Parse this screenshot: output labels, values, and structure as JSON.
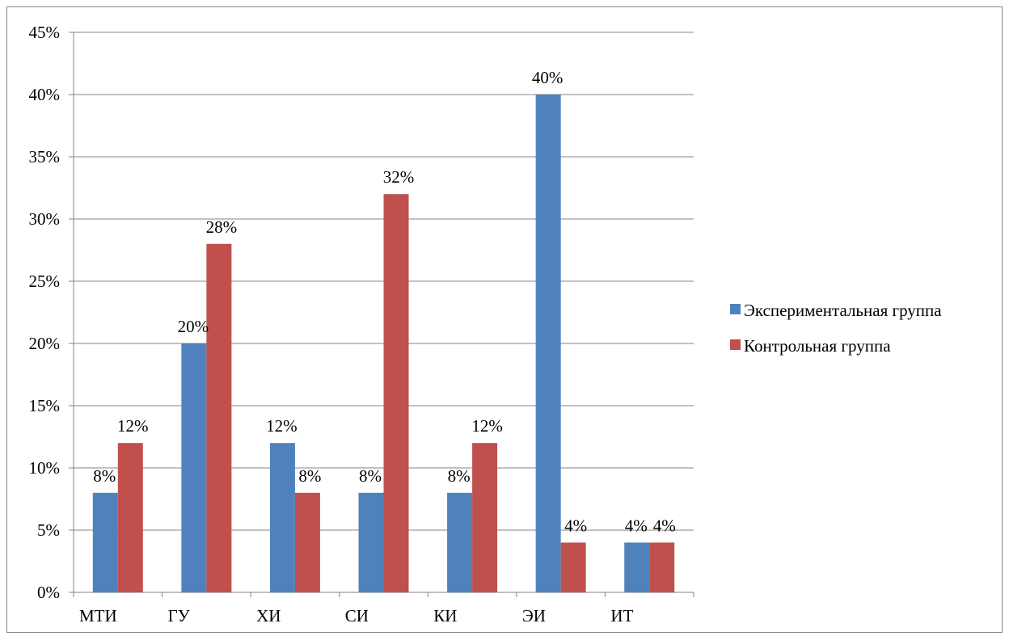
{
  "chart_data": {
    "type": "bar",
    "categories": [
      "МТИ",
      "ГУ",
      "ХИ",
      "СИ",
      "КИ",
      "ЭИ",
      "ИТ"
    ],
    "series": [
      {
        "name": "Экспериментальная группа",
        "color": "#4F81BD",
        "values": [
          8,
          20,
          12,
          8,
          8,
          40,
          4
        ]
      },
      {
        "name": "Контрольная группа",
        "color": "#C0504D",
        "values": [
          12,
          28,
          8,
          32,
          12,
          4,
          4
        ]
      }
    ],
    "ylim": [
      0,
      45
    ],
    "yticks": [
      0,
      5,
      10,
      15,
      20,
      25,
      30,
      35,
      40,
      45
    ],
    "ytick_labels": [
      "0%",
      "5%",
      "10%",
      "15%",
      "20%",
      "25%",
      "30%",
      "35%",
      "40%",
      "45%"
    ],
    "data_label_suffix": "%",
    "grid": true,
    "legend_position": "right",
    "title": "",
    "xlabel": "",
    "ylabel": ""
  }
}
